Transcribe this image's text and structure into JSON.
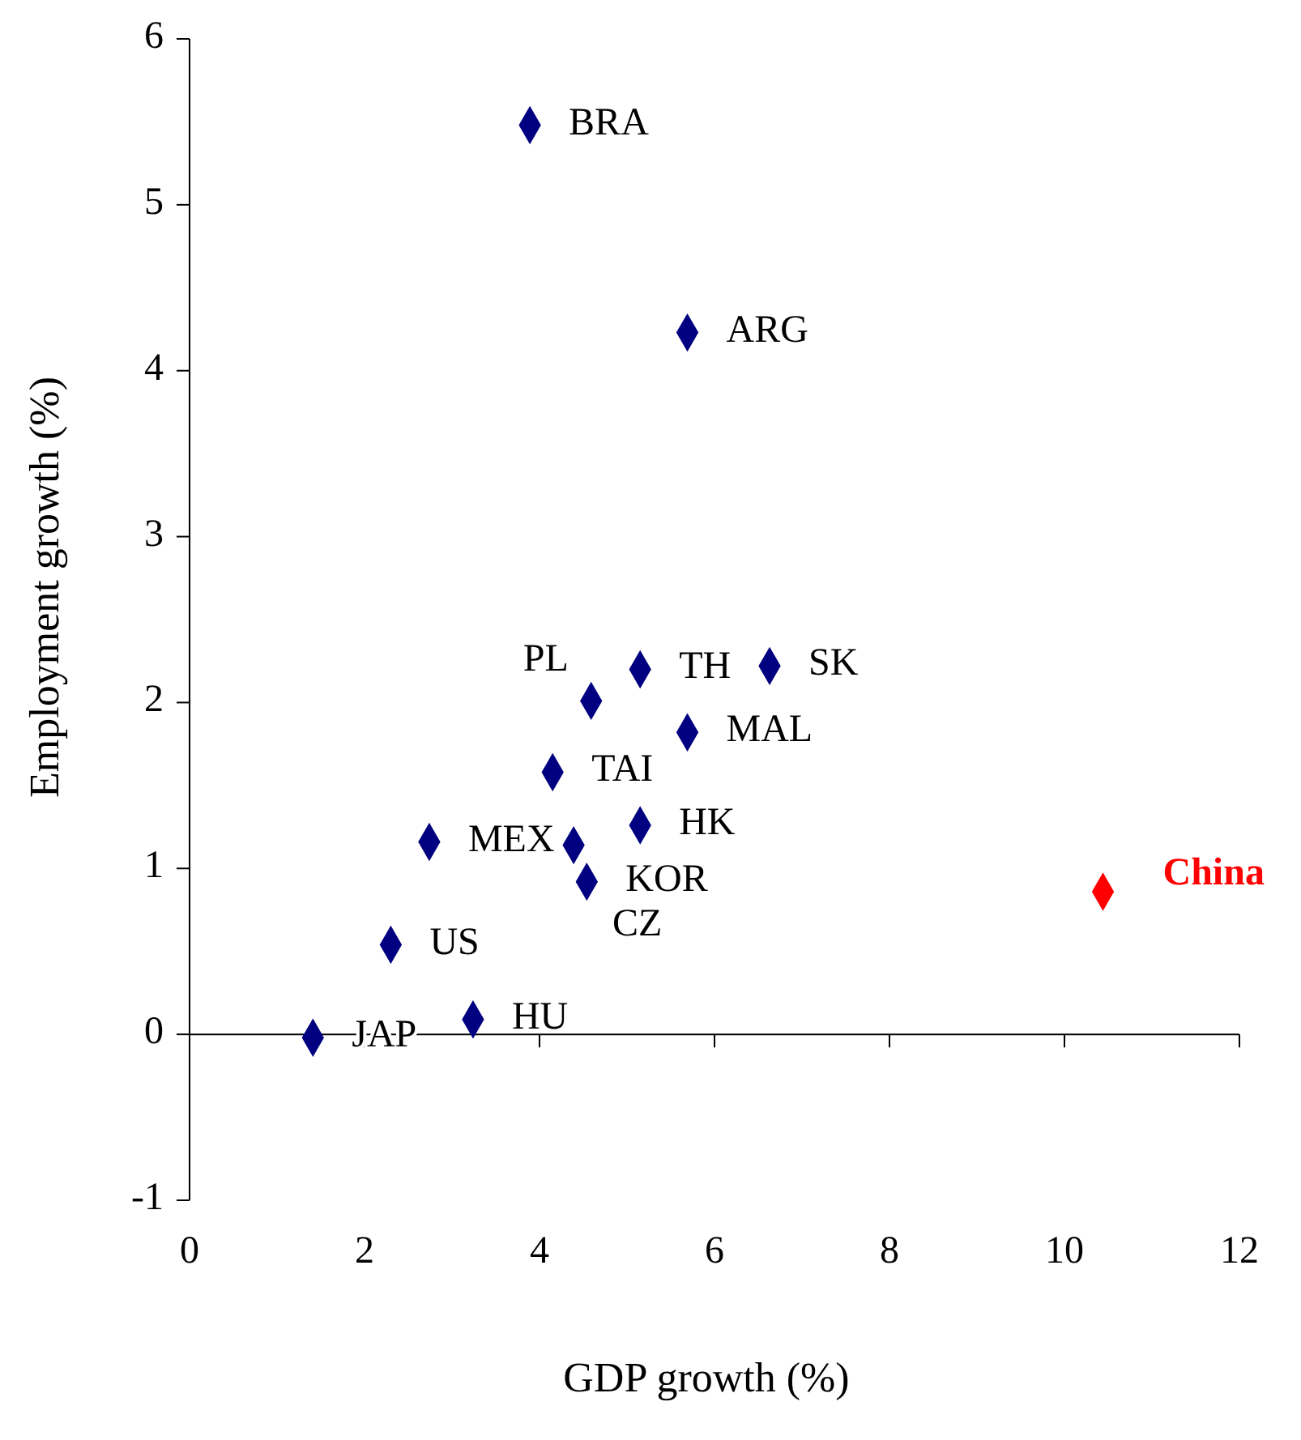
{
  "chart_data": {
    "type": "scatter",
    "xlabel": "GDP growth (%)",
    "ylabel": "Employment growth (%)",
    "xlim": [
      0,
      12
    ],
    "xticks": [
      0,
      2,
      4,
      6,
      8,
      10,
      12
    ],
    "ylim": [
      -1,
      6
    ],
    "yticks": [
      -1,
      0,
      1,
      2,
      3,
      4,
      5,
      6
    ],
    "marker": "diamond",
    "series": [
      {
        "color": "#000080",
        "x": [
          3.89,
          5.69,
          4.59,
          5.15,
          6.63,
          5.69,
          4.15,
          5.15,
          2.74,
          4.39,
          4.54,
          2.3,
          3.24,
          1.41
        ],
        "values": [
          5.48,
          4.23,
          2.01,
          2.2,
          2.22,
          1.82,
          1.58,
          1.26,
          1.16,
          1.14,
          0.92,
          0.54,
          0.09,
          -0.02
        ]
      },
      {
        "name": "China",
        "color": "#ff0000",
        "x": [
          10.44
        ],
        "values": [
          0.86
        ]
      }
    ],
    "annotations": [
      {
        "text": "BRA",
        "x": 3.89,
        "y": 5.48
      },
      {
        "text": "ARG",
        "x": 5.69,
        "y": 4.23
      },
      {
        "text": "PL",
        "x": 4.59,
        "y": 2.01
      },
      {
        "text": "TH",
        "x": 5.15,
        "y": 2.2
      },
      {
        "text": "SK",
        "x": 6.63,
        "y": 2.22
      },
      {
        "text": "MAL",
        "x": 5.69,
        "y": 1.82
      },
      {
        "text": "TAI",
        "x": 4.15,
        "y": 1.58
      },
      {
        "text": "HK",
        "x": 5.15,
        "y": 1.26
      },
      {
        "text": "MEX",
        "x": 2.74,
        "y": 1.16
      },
      {
        "text": "CZ",
        "x": 4.39,
        "y": 1.14
      },
      {
        "text": "KOR",
        "x": 4.54,
        "y": 0.92
      },
      {
        "text": "US",
        "x": 2.3,
        "y": 0.54
      },
      {
        "text": "HU",
        "x": 3.24,
        "y": 0.09
      },
      {
        "text": "JAP",
        "x": 1.41,
        "y": -0.02
      }
    ]
  }
}
